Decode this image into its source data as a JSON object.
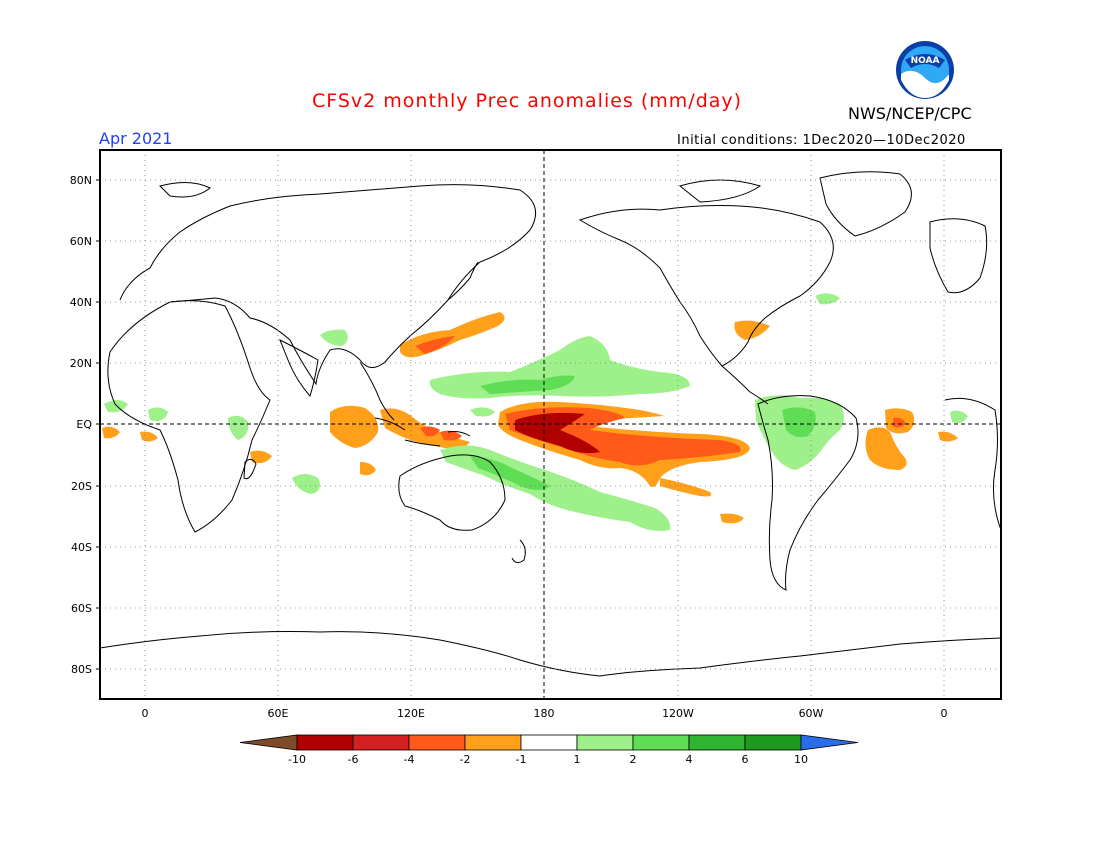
{
  "header": {
    "title": "CFSv2 monthly Prec anomalies (mm/day)",
    "title_color": "#ff0000",
    "agency": "NWS/NCEP/CPC",
    "month": "Apr 2021",
    "month_color": "#1f3fff",
    "initial_conditions": "Initial conditions: 1Dec2020—10Dec2020",
    "logo_label": "NOAA"
  },
  "map": {
    "lat_labels": [
      "80N",
      "60N",
      "40N",
      "20N",
      "EQ",
      "20S",
      "40S",
      "60S",
      "80S"
    ],
    "lon_labels": [
      "0",
      "60E",
      "120E",
      "180",
      "120W",
      "60W",
      "0"
    ]
  },
  "colorbar": {
    "labels": [
      "-10",
      "-6",
      "-4",
      "-2",
      "-1",
      "1",
      "2",
      "4",
      "6",
      "10"
    ],
    "colors": [
      "#7f4a2a",
      "#b00000",
      "#d42020",
      "#ff5a1a",
      "#ff9f1a",
      "#ffffff",
      "#9ef08a",
      "#5fdd55",
      "#2fb52f",
      "#1d9a1d",
      "#2b6de8"
    ]
  }
}
